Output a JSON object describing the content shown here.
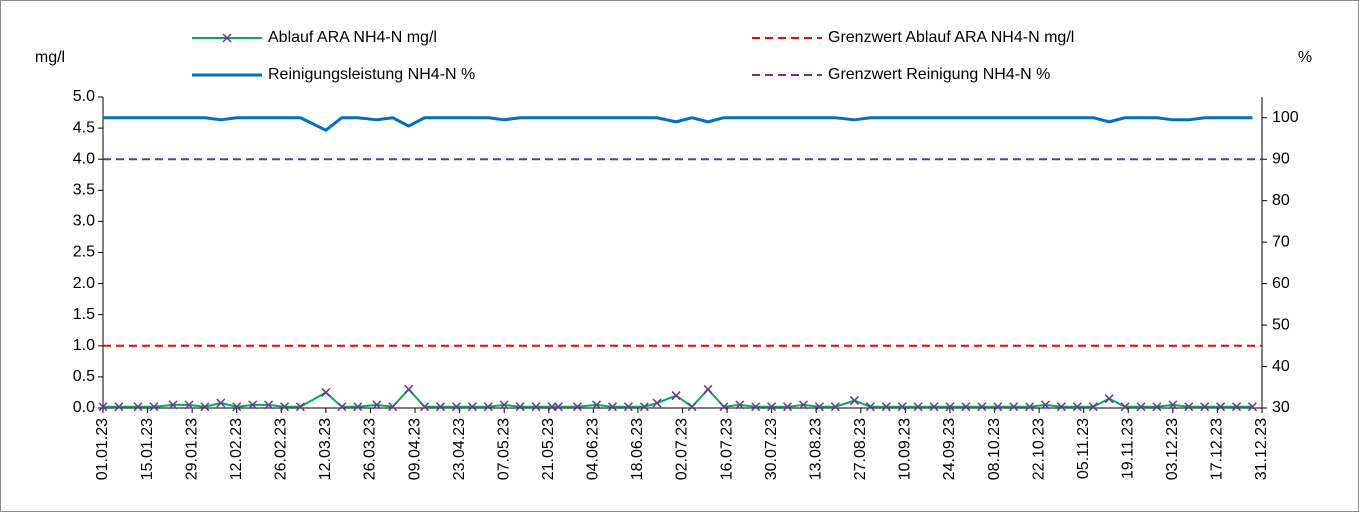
{
  "chart_data": {
    "type": "line",
    "y_label": "mg/l",
    "y2_label": "%",
    "x": [
      "01.01.23",
      "06.01.23",
      "12.01.23",
      "17.01.23",
      "23.01.23",
      "28.01.23",
      "02.02.23",
      "07.02.23",
      "12.02.23",
      "17.02.23",
      "22.02.23",
      "27.02.23",
      "04.03.23",
      "12.03.23",
      "17.03.23",
      "22.03.23",
      "28.03.23",
      "02.04.23",
      "07.04.23",
      "12.04.23",
      "17.04.23",
      "22.04.23",
      "27.04.23",
      "02.05.23",
      "07.05.23",
      "12.05.23",
      "17.05.23",
      "22.05.23",
      "24.05.23",
      "30.05.23",
      "05.06.23",
      "10.06.23",
      "15.06.23",
      "20.06.23",
      "24.06.23",
      "30.06.23",
      "05.07.23",
      "10.07.23",
      "15.07.23",
      "20.07.23",
      "25.07.23",
      "30.07.23",
      "04.08.23",
      "09.08.23",
      "14.08.23",
      "19.08.23",
      "25.08.23",
      "30.08.23",
      "04.09.23",
      "09.09.23",
      "14.09.23",
      "19.09.23",
      "24.09.23",
      "29.09.23",
      "04.10.23",
      "09.10.23",
      "14.10.23",
      "19.10.23",
      "24.10.23",
      "29.10.23",
      "03.11.23",
      "08.11.23",
      "13.11.23",
      "18.11.23",
      "23.11.23",
      "28.11.23",
      "03.12.23",
      "08.12.23",
      "13.12.23",
      "18.12.23",
      "23.12.23",
      "28.12.23"
    ],
    "xlim": [
      "01.01.23",
      "31.12.23"
    ],
    "xticks": [
      "01.01.23",
      "15.01.23",
      "29.01.23",
      "12.02.23",
      "26.02.23",
      "12.03.23",
      "26.03.23",
      "09.04.23",
      "23.04.23",
      "07.05.23",
      "21.05.23",
      "04.06.23",
      "18.06.23",
      "02.07.23",
      "16.07.23",
      "30.07.23",
      "13.08.23",
      "27.08.23",
      "10.09.23",
      "24.09.23",
      "08.10.23",
      "22.10.23",
      "05.11.23",
      "19.11.23",
      "03.12.23",
      "17.12.23",
      "31.12.23"
    ],
    "ylim": [
      0,
      5
    ],
    "yticks": [
      {
        "value": 0,
        "label": "0.0"
      },
      {
        "value": 0.5,
        "label": "0.5"
      },
      {
        "value": 1,
        "label": "1.0"
      },
      {
        "value": 1.5,
        "label": "1.5"
      },
      {
        "value": 2,
        "label": "2.0"
      },
      {
        "value": 2.5,
        "label": "2.5"
      },
      {
        "value": 3,
        "label": "3.0"
      },
      {
        "value": 3.5,
        "label": "3.5"
      },
      {
        "value": 4,
        "label": "4.0"
      },
      {
        "value": 4.5,
        "label": "4.5"
      },
      {
        "value": 5,
        "label": "5.0"
      }
    ],
    "y2lim": [
      30,
      105
    ],
    "y2ticks": [
      30,
      40,
      50,
      60,
      70,
      80,
      90,
      100
    ],
    "series": [
      {
        "name": "Ablauf ARA NH4-N mg/l",
        "color": "#00b050",
        "marker_color": "#7030a0",
        "values": [
          0.02,
          0.02,
          0.02,
          0.02,
          0.05,
          0.05,
          0.02,
          0.08,
          0.02,
          0.05,
          0.05,
          0.02,
          0.02,
          0.25,
          0.02,
          0.02,
          0.05,
          0.02,
          0.3,
          0.02,
          0.02,
          0.02,
          0.02,
          0.02,
          0.05,
          0.02,
          0.02,
          0.02,
          0.02,
          0.02,
          0.05,
          0.02,
          0.02,
          0.02,
          0.08,
          0.2,
          0.02,
          0.3,
          0.02,
          0.05,
          0.02,
          0.02,
          0.02,
          0.05,
          0.02,
          0.02,
          0.12,
          0.02,
          0.02,
          0.02,
          0.02,
          0.02,
          0.02,
          0.02,
          0.02,
          0.02,
          0.02,
          0.02,
          0.05,
          0.02,
          0.02,
          0.02,
          0.15,
          0.02,
          0.02,
          0.02,
          0.05,
          0.02,
          0.02,
          0.02,
          0.02,
          0.02
        ]
      },
      {
        "name": "Grenzwert Ablauf ARA NH4-N mg/l",
        "color": "#ff0000",
        "value": 1
      },
      {
        "name": "Reinigungsleistung NH4-N %",
        "color": "#0070c0",
        "axis": "y2",
        "values": [
          100,
          100,
          100,
          100,
          100,
          100,
          100,
          99.5,
          100,
          100,
          100,
          100,
          100,
          97,
          100,
          100,
          99.5,
          100,
          98,
          100,
          100,
          100,
          100,
          100,
          99.5,
          100,
          100,
          100,
          100,
          100,
          100,
          100,
          100,
          100,
          100,
          99,
          100,
          99,
          100,
          100,
          100,
          100,
          100,
          100,
          100,
          100,
          99.5,
          100,
          100,
          100,
          100,
          100,
          100,
          100,
          100,
          100,
          100,
          100,
          100,
          100,
          100,
          100,
          99,
          100,
          100,
          100,
          99.5,
          99.5,
          100,
          100,
          100,
          100
        ]
      },
      {
        "name": "Grenzwert Reinigung NH4-N %",
        "color": "#7030a0",
        "axis": "y2",
        "value": 90
      }
    ]
  }
}
